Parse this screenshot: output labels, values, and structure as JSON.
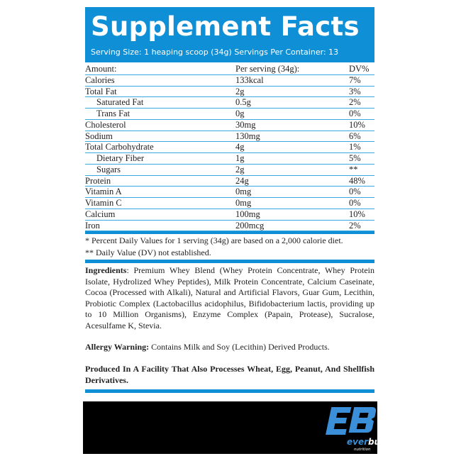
{
  "header": {
    "title": "Supplement Facts",
    "serving": "Serving Size: 1 heaping scoop (34g)  Servings Per Container: 13"
  },
  "table": {
    "columns": [
      "Amount:",
      "Per serving (34g):",
      "DV%"
    ],
    "rows": [
      {
        "name": "Calories",
        "amount": "133kcal",
        "dv": "7%",
        "indent": false
      },
      {
        "name": "Total Fat",
        "amount": "2g",
        "dv": "3%",
        "indent": false
      },
      {
        "name": "Saturated Fat",
        "amount": "0.5g",
        "dv": "2%",
        "indent": true
      },
      {
        "name": "Trans Fat",
        "amount": "0g",
        "dv": "0%",
        "indent": true
      },
      {
        "name": "Cholesterol",
        "amount": "30mg",
        "dv": "10%",
        "indent": false
      },
      {
        "name": "Sodium",
        "amount": "130mg",
        "dv": "6%",
        "indent": false
      },
      {
        "name": "Total Carbohydrate",
        "amount": "4g",
        "dv": "1%",
        "indent": false
      },
      {
        "name": "Dietary Fiber",
        "amount": "1g",
        "dv": "5%",
        "indent": true
      },
      {
        "name": "Sugars",
        "amount": "2g",
        "dv": "**",
        "indent": true
      },
      {
        "name": "Protein",
        "amount": "24g",
        "dv": "48%",
        "indent": false
      },
      {
        "name": "Vitamin A",
        "amount": "0mg",
        "dv": "0%",
        "indent": false
      },
      {
        "name": "Vitamin C",
        "amount": "0mg",
        "dv": "0%",
        "indent": false
      },
      {
        "name": "Calcium",
        "amount": "100mg",
        "dv": "10%",
        "indent": false
      },
      {
        "name": "Iron",
        "amount": "200mcg",
        "dv": "2%",
        "indent": false
      }
    ]
  },
  "notes": [
    "* Percent Daily Values for 1 serving (34g) are based on a 2,000 calorie diet.",
    "** Daily Value (DV) not established."
  ],
  "ingredients": {
    "label": "Ingredients",
    "text": ": Premium Whey Blend (Whey Protein Concentrate, Whey Protein Isolate, Hydrolized Whey Peptides), Milk Protein Concentrate, Calcium Caseinate, Cocoa (Processed with Alkali), Natural and Artificial Flavors, Guar Gum, Lecithin, Probiotic Complex (Lactobacillus acidophilus, Bifidobacterium lactis, providing up to 10 Million Organisms), Enzyme Complex (Papain, Protease), Sucralose, Acesulfame K, Stevia."
  },
  "allergy": {
    "label": "Allergy Warning:",
    "text": " Contains Milk and Soy (Lecithin) Derived Products."
  },
  "facility": "Produced In A Facility That Also Processes Wheat, Egg, Peanut, And Shellfish Derivatives.",
  "logo": {
    "mark": "EB",
    "brand": "everbuild",
    "sub": "nutrition"
  },
  "colors": {
    "accent": "#0f8fd6",
    "logo_blue": "#3a8fd8"
  }
}
